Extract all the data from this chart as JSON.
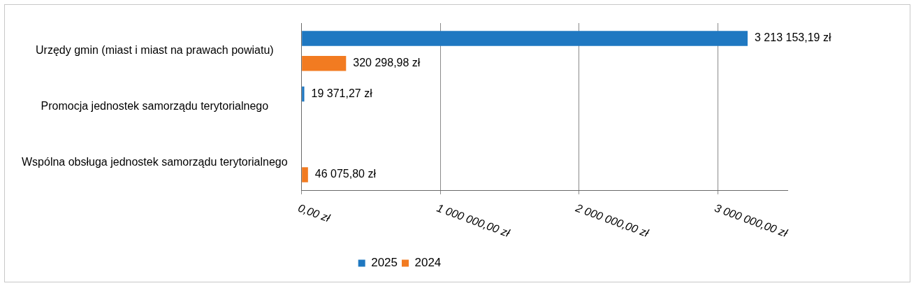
{
  "chart_data": {
    "type": "bar",
    "orientation": "horizontal",
    "categories": [
      "Urzędy gmin (miast i miast na prawach powiatu)",
      "Promocja jednostek samorządu terytorialnego",
      "Wspólna obsługa jednostek samorządu terytorialnego"
    ],
    "series": [
      {
        "name": "2025",
        "color": "#1f78c1",
        "values": [
          3213153.19,
          19371.27,
          null
        ],
        "value_labels": [
          "3 213 153,19 zł",
          "19 371,27 zł",
          null
        ]
      },
      {
        "name": "2024",
        "color": "#f27b21",
        "values": [
          320298.98,
          null,
          46075.8
        ],
        "value_labels": [
          "320 298,98 zł",
          null,
          "46 075,80 zł"
        ]
      }
    ],
    "xlim": [
      0,
      3500000
    ],
    "xticks": [
      {
        "value": 0,
        "label": "0,00 zł"
      },
      {
        "value": 1000000,
        "label": "1 000 000,00 zł"
      },
      {
        "value": 2000000,
        "label": "2 000 000,00 zł"
      },
      {
        "value": 3000000,
        "label": "3 000 000,00 zł"
      }
    ],
    "grid": "x",
    "legend": "bottom"
  }
}
